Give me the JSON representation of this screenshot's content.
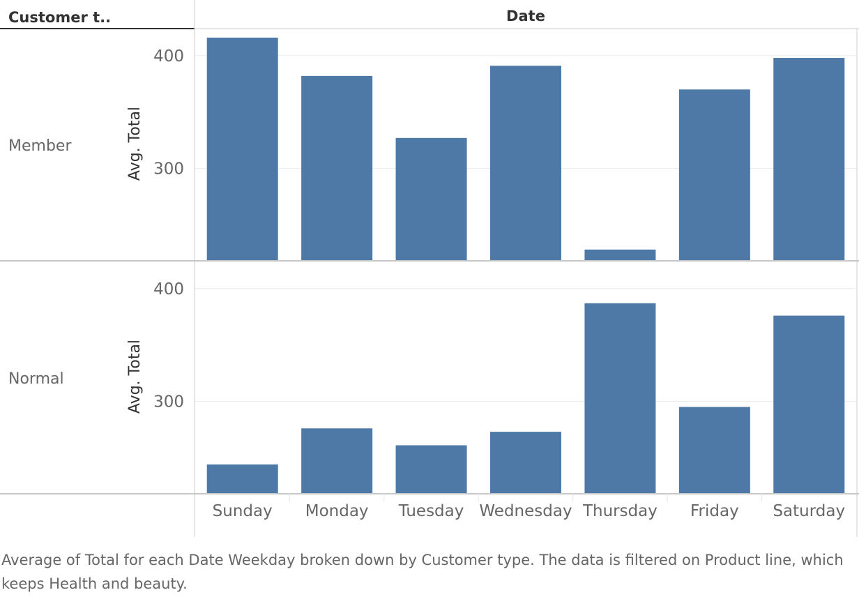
{
  "header": {
    "row_field": "Customer t..",
    "column_field": "Date"
  },
  "caption": "Average of Total for each Date Weekday broken down by Customer type. The data is filtered on Product line, which keeps Health and beauty.",
  "chart_data": {
    "type": "bar",
    "categories": [
      "Sunday",
      "Monday",
      "Tuesday",
      "Wednesday",
      "Thursday",
      "Friday",
      "Saturday"
    ],
    "ylabel": "Avg. Total",
    "yticks": [
      300,
      400
    ],
    "ylim": [
      218,
      424
    ],
    "grid": true,
    "bar_color": "#4e79a7",
    "panels": [
      {
        "row": "Member",
        "values": [
          416,
          382,
          327,
          391,
          228,
          370,
          398
        ]
      },
      {
        "row": "Normal",
        "values": [
          244,
          276,
          261,
          273,
          387,
          295,
          376
        ]
      }
    ]
  }
}
